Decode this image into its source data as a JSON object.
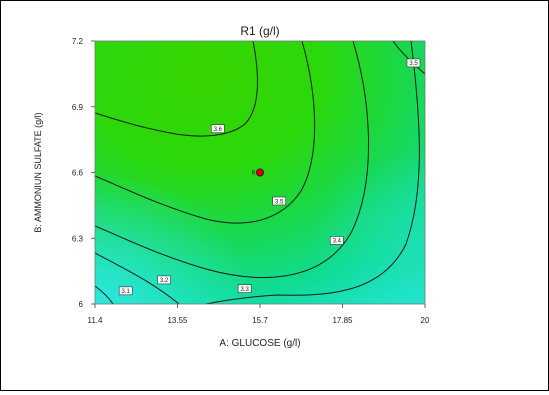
{
  "chart_data": {
    "type": "contour",
    "title": "R1 (g/l)",
    "xlabel": "A: GLUCOSE (g/l)",
    "ylabel": "B: AMMONIUN SULFATE (g/l)",
    "xlim": [
      11.4,
      20
    ],
    "ylim": [
      6,
      7.2
    ],
    "x_ticks": [
      "11.4",
      "13.55",
      "15.7",
      "17.85",
      "20"
    ],
    "y_ticks": [
      "6",
      "6.3",
      "6.6",
      "6.9",
      "7.2"
    ],
    "grid": false,
    "legend": "none",
    "contour_levels": [
      {
        "label": "3.1",
        "x": 12.2,
        "y": 6.06
      },
      {
        "label": "3.2",
        "x": 13.2,
        "y": 6.11
      },
      {
        "label": "3.3",
        "x": 15.3,
        "y": 6.07
      },
      {
        "label": "3.4",
        "x": 17.7,
        "y": 6.29
      },
      {
        "label": "3.5",
        "x": 16.2,
        "y": 6.47
      },
      {
        "label": "3.5",
        "x": 19.7,
        "y": 7.1
      },
      {
        "label": "3.6",
        "x": 14.6,
        "y": 6.8
      }
    ],
    "design_point": {
      "label": "6",
      "x": 15.7,
      "y": 6.6
    },
    "colors": {
      "high": "#35dd00",
      "mid": "#18d850",
      "low": "#10dcbc",
      "corner": "#30e8e8"
    }
  }
}
